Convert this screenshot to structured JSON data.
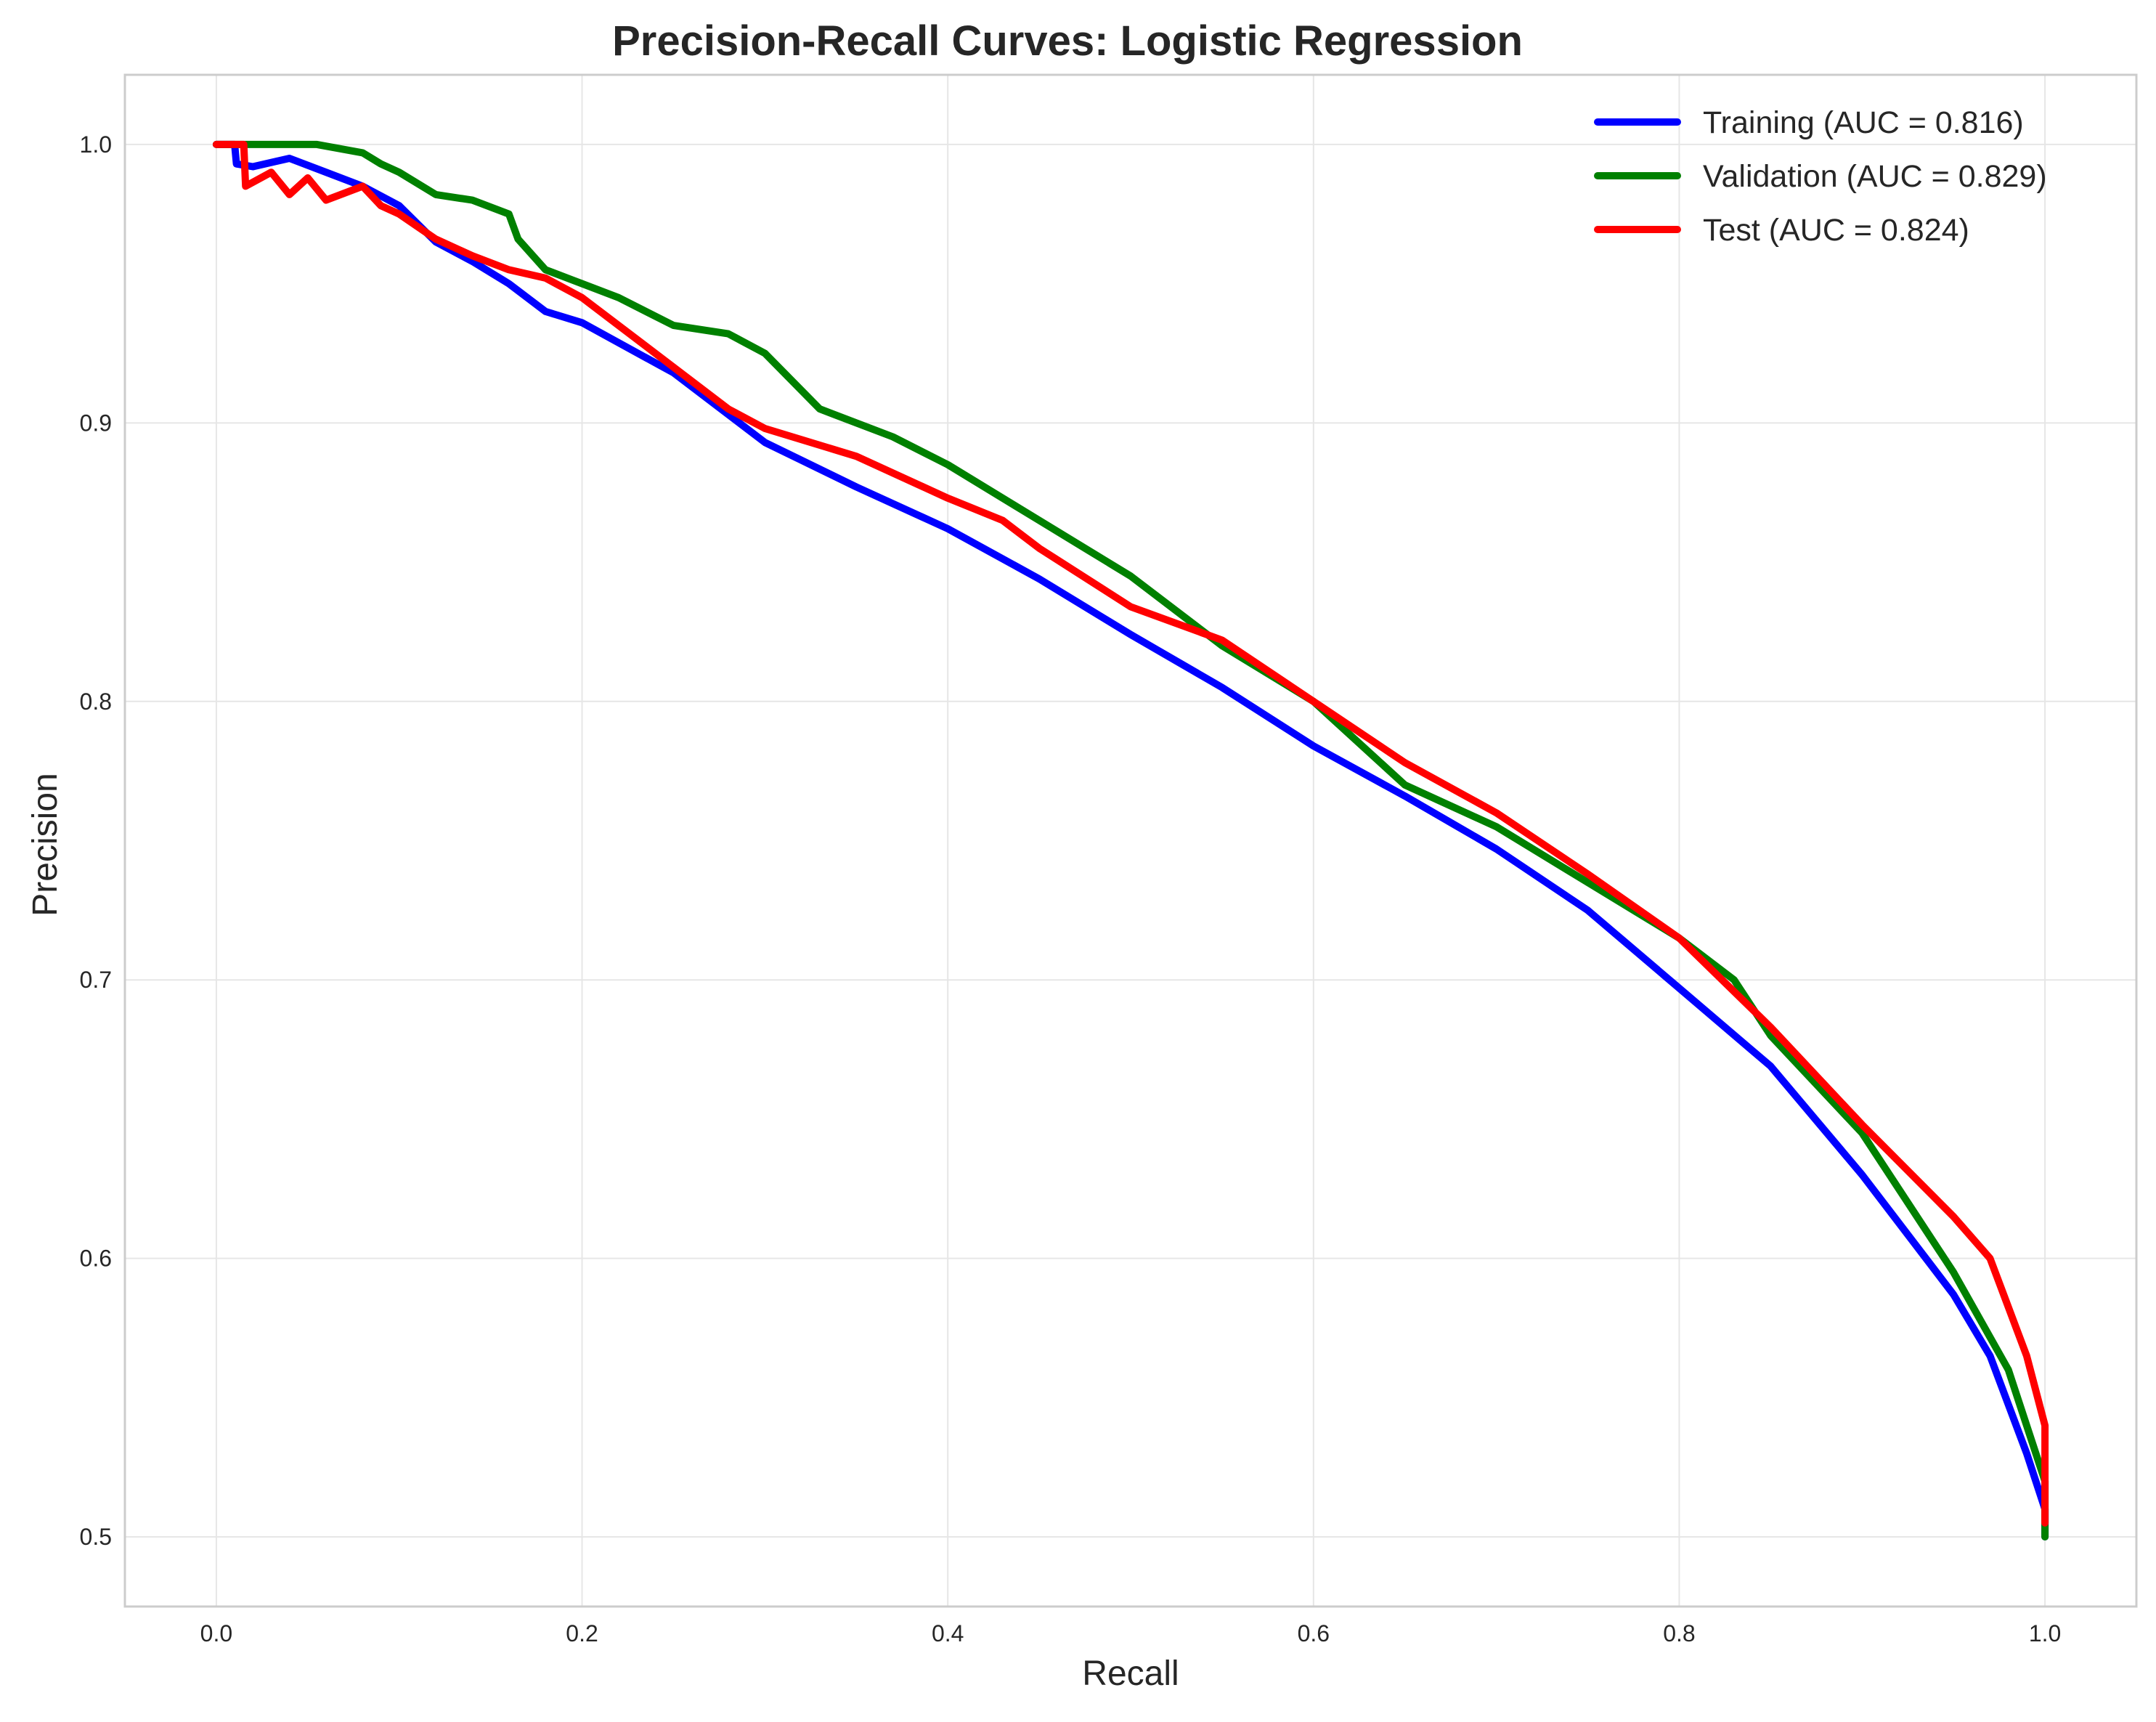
{
  "chart_data": {
    "type": "line",
    "title": "Precision-Recall Curves: Logistic Regression",
    "xlabel": "Recall",
    "ylabel": "Precision",
    "xlim": [
      -0.05,
      1.05
    ],
    "ylim": [
      0.475,
      1.025
    ],
    "xticks": [
      0.0,
      0.2,
      0.4,
      0.6,
      0.8,
      1.0
    ],
    "xtick_labels": [
      "0.0",
      "0.2",
      "0.4",
      "0.6",
      "0.8",
      "1.0"
    ],
    "yticks": [
      0.5,
      0.6,
      0.7,
      0.8,
      0.9,
      1.0
    ],
    "ytick_labels": [
      "0.5",
      "0.6",
      "0.7",
      "0.8",
      "0.9",
      "1.0"
    ],
    "grid": true,
    "legend_position": "top-right",
    "series": [
      {
        "name": "Training (AUC = 0.816)",
        "color": "#0000ff",
        "x": [
          0.0,
          0.01,
          0.011,
          0.02,
          0.04,
          0.06,
          0.08,
          0.1,
          0.12,
          0.14,
          0.16,
          0.18,
          0.2,
          0.25,
          0.3,
          0.35,
          0.4,
          0.45,
          0.5,
          0.55,
          0.6,
          0.65,
          0.7,
          0.75,
          0.8,
          0.85,
          0.9,
          0.95,
          0.97,
          0.99,
          1.0,
          1.0
        ],
        "y": [
          1.0,
          1.0,
          0.993,
          0.992,
          0.995,
          0.99,
          0.985,
          0.978,
          0.965,
          0.958,
          0.95,
          0.94,
          0.936,
          0.918,
          0.893,
          0.877,
          0.862,
          0.844,
          0.824,
          0.805,
          0.784,
          0.766,
          0.747,
          0.725,
          0.697,
          0.669,
          0.63,
          0.587,
          0.565,
          0.53,
          0.51,
          0.5
        ]
      },
      {
        "name": "Validation (AUC = 0.829)",
        "color": "#008000",
        "x": [
          0.0,
          0.02,
          0.055,
          0.08,
          0.09,
          0.1,
          0.12,
          0.14,
          0.16,
          0.165,
          0.18,
          0.2,
          0.22,
          0.25,
          0.28,
          0.3,
          0.33,
          0.37,
          0.4,
          0.45,
          0.5,
          0.55,
          0.6,
          0.65,
          0.7,
          0.75,
          0.8,
          0.83,
          0.85,
          0.9,
          0.95,
          0.98,
          0.99,
          1.0,
          1.0
        ],
        "y": [
          1.0,
          1.0,
          1.0,
          0.997,
          0.993,
          0.99,
          0.982,
          0.98,
          0.975,
          0.966,
          0.955,
          0.95,
          0.945,
          0.935,
          0.932,
          0.925,
          0.905,
          0.895,
          0.885,
          0.865,
          0.845,
          0.82,
          0.8,
          0.77,
          0.755,
          0.735,
          0.715,
          0.7,
          0.68,
          0.645,
          0.595,
          0.56,
          0.54,
          0.52,
          0.5
        ]
      },
      {
        "name": "Test (AUC = 0.824)",
        "color": "#ff0000",
        "x": [
          0.0,
          0.015,
          0.016,
          0.03,
          0.04,
          0.05,
          0.06,
          0.08,
          0.09,
          0.1,
          0.12,
          0.14,
          0.16,
          0.18,
          0.2,
          0.22,
          0.25,
          0.28,
          0.3,
          0.35,
          0.4,
          0.43,
          0.45,
          0.5,
          0.55,
          0.6,
          0.65,
          0.7,
          0.75,
          0.8,
          0.85,
          0.9,
          0.95,
          0.97,
          0.99,
          1.0,
          1.0
        ],
        "y": [
          1.0,
          1.0,
          0.985,
          0.99,
          0.982,
          0.988,
          0.98,
          0.985,
          0.978,
          0.975,
          0.966,
          0.96,
          0.955,
          0.952,
          0.945,
          0.935,
          0.92,
          0.905,
          0.898,
          0.888,
          0.873,
          0.865,
          0.855,
          0.834,
          0.822,
          0.8,
          0.778,
          0.76,
          0.738,
          0.715,
          0.683,
          0.648,
          0.615,
          0.6,
          0.565,
          0.54,
          0.505
        ]
      }
    ]
  }
}
